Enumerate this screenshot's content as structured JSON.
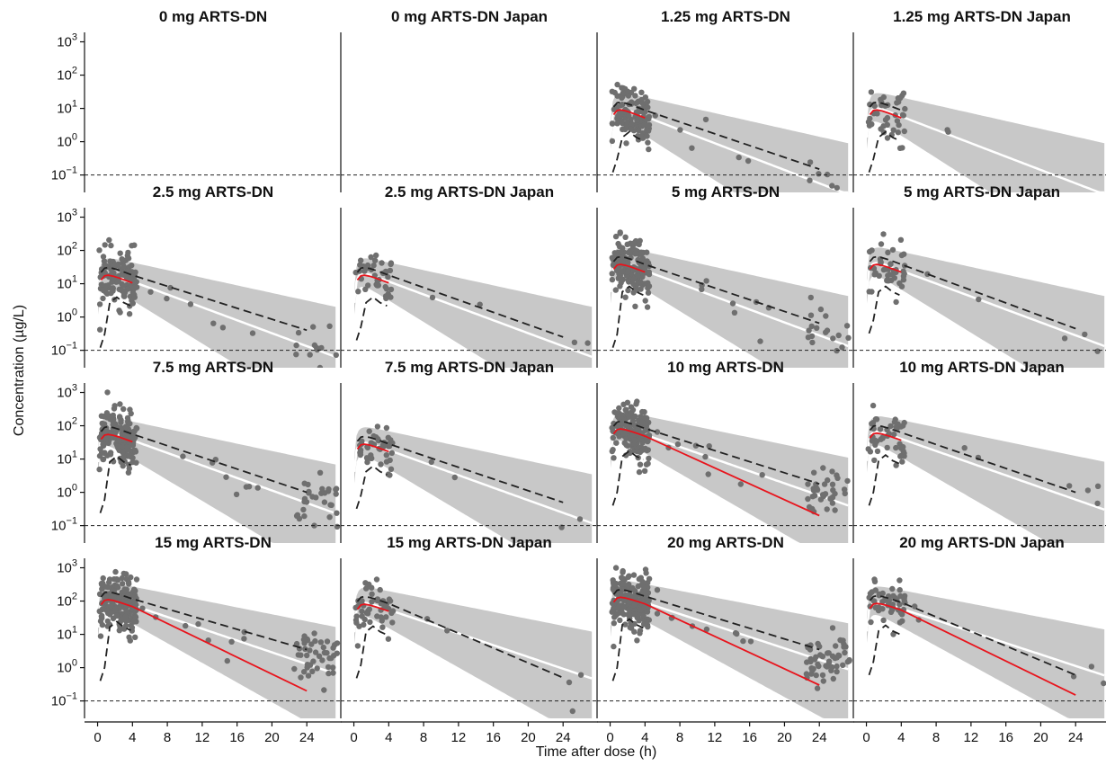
{
  "figure": {
    "ylabel": "Concentration (µg/L)",
    "xlabel": "Time after dose (h)",
    "colors": {
      "band": "#c8c8c8",
      "median": "#ffffff",
      "observed_median": "#e8141c",
      "percentiles": "#222222",
      "points": "#6f6f6f",
      "lloq": "#222222"
    }
  },
  "chart_data": {
    "type": "scatter",
    "layout": "4x4 grid of panels",
    "x_ticks": [
      0,
      4,
      8,
      12,
      16,
      20,
      24
    ],
    "x_range": [
      -1.5,
      28
    ],
    "y_scale": "log10",
    "y_ticks": [
      {
        "base": "10",
        "exp": "3",
        "value": 1000
      },
      {
        "base": "10",
        "exp": "2",
        "value": 100
      },
      {
        "base": "10",
        "exp": "1",
        "value": 10
      },
      {
        "base": "10",
        "exp": "0",
        "value": 1
      },
      {
        "base": "10",
        "exp": "−1",
        "value": 0.1
      }
    ],
    "y_range": [
      0.03,
      1500
    ],
    "lloq": 0.1,
    "panels": [
      {
        "title": "0 mg ARTS-DN",
        "empty": true
      },
      {
        "title": "0 mg ARTS-DN Japan",
        "empty": true
      },
      {
        "title": "1.25 mg ARTS-DN",
        "cmax": 9,
        "halfLife": 3.0,
        "nLow": 120,
        "nLate": 6,
        "upperEnd": 0.15,
        "lowerLow": 0.3
      },
      {
        "title": "1.25 mg ARTS-DN Japan",
        "cmax": 9,
        "halfLife": 3.0,
        "nLow": 40,
        "nLate": 0,
        "upperEnd": null,
        "lowerLow": 0.3
      },
      {
        "title": "2.5 mg ARTS-DN",
        "cmax": 18,
        "halfLife": 3.1,
        "nLow": 140,
        "nLate": 12,
        "upperEnd": 0.4,
        "lowerLow": 0.3
      },
      {
        "title": "2.5 mg ARTS-DN Japan",
        "cmax": 18,
        "halfLife": 3.1,
        "nLow": 40,
        "nLate": 2,
        "upperEnd": 0.25,
        "lowerLow": 0.5
      },
      {
        "title": "5 mg ARTS-DN",
        "cmax": 38,
        "halfLife": 3.1,
        "nLow": 160,
        "nLate": 18,
        "upperEnd": 0.65,
        "lowerLow": 0.3
      },
      {
        "title": "5 mg ARTS-DN Japan",
        "cmax": 38,
        "halfLife": 3.1,
        "nLow": 45,
        "nLate": 3,
        "upperEnd": 0.45,
        "lowerLow": 0.8
      },
      {
        "title": "7.5 mg ARTS-DN",
        "cmax": 55,
        "halfLife": 3.2,
        "nLow": 170,
        "nLate": 30,
        "upperEnd": 1.0,
        "lowerLow": 0.6
      },
      {
        "title": "7.5 mg ARTS-DN Japan",
        "cmax": 28,
        "halfLife": 3.2,
        "nLow": 45,
        "nLate": 2,
        "upperEnd": 0.5,
        "lowerLow": 0.8
      },
      {
        "title": "10 mg ARTS-DN",
        "cmax": 80,
        "halfLife": 3.3,
        "nLow": 180,
        "nLate": 35,
        "upperEnd": 1.8,
        "lowerLow": 1.0,
        "redTail": 0.2
      },
      {
        "title": "10 mg ARTS-DN Japan",
        "cmax": 60,
        "halfLife": 3.3,
        "nLow": 45,
        "nLate": 4,
        "upperEnd": 1.0,
        "lowerLow": 1.0
      },
      {
        "title": "15 mg ARTS-DN",
        "cmax": 110,
        "halfLife": 3.4,
        "nLow": 190,
        "nLate": 45,
        "upperEnd": 3.5,
        "lowerLow": 1.0,
        "redTail": 0.2
      },
      {
        "title": "15 mg ARTS-DN Japan",
        "cmax": 80,
        "halfLife": 3.4,
        "nLow": 50,
        "nLate": 3,
        "upperEnd": 0.5,
        "lowerLow": 1.2
      },
      {
        "title": "20 mg ARTS-DN",
        "cmax": 130,
        "halfLife": 3.5,
        "nLow": 200,
        "nLate": 55,
        "upperEnd": 3.5,
        "lowerLow": 1.0,
        "redTail": 0.3
      },
      {
        "title": "20 mg ARTS-DN Japan",
        "cmax": 85,
        "halfLife": 3.5,
        "nLow": 50,
        "nLate": 3,
        "upperEnd": 0.6,
        "lowerLow": 1.5,
        "redTail": 0.15
      }
    ]
  }
}
